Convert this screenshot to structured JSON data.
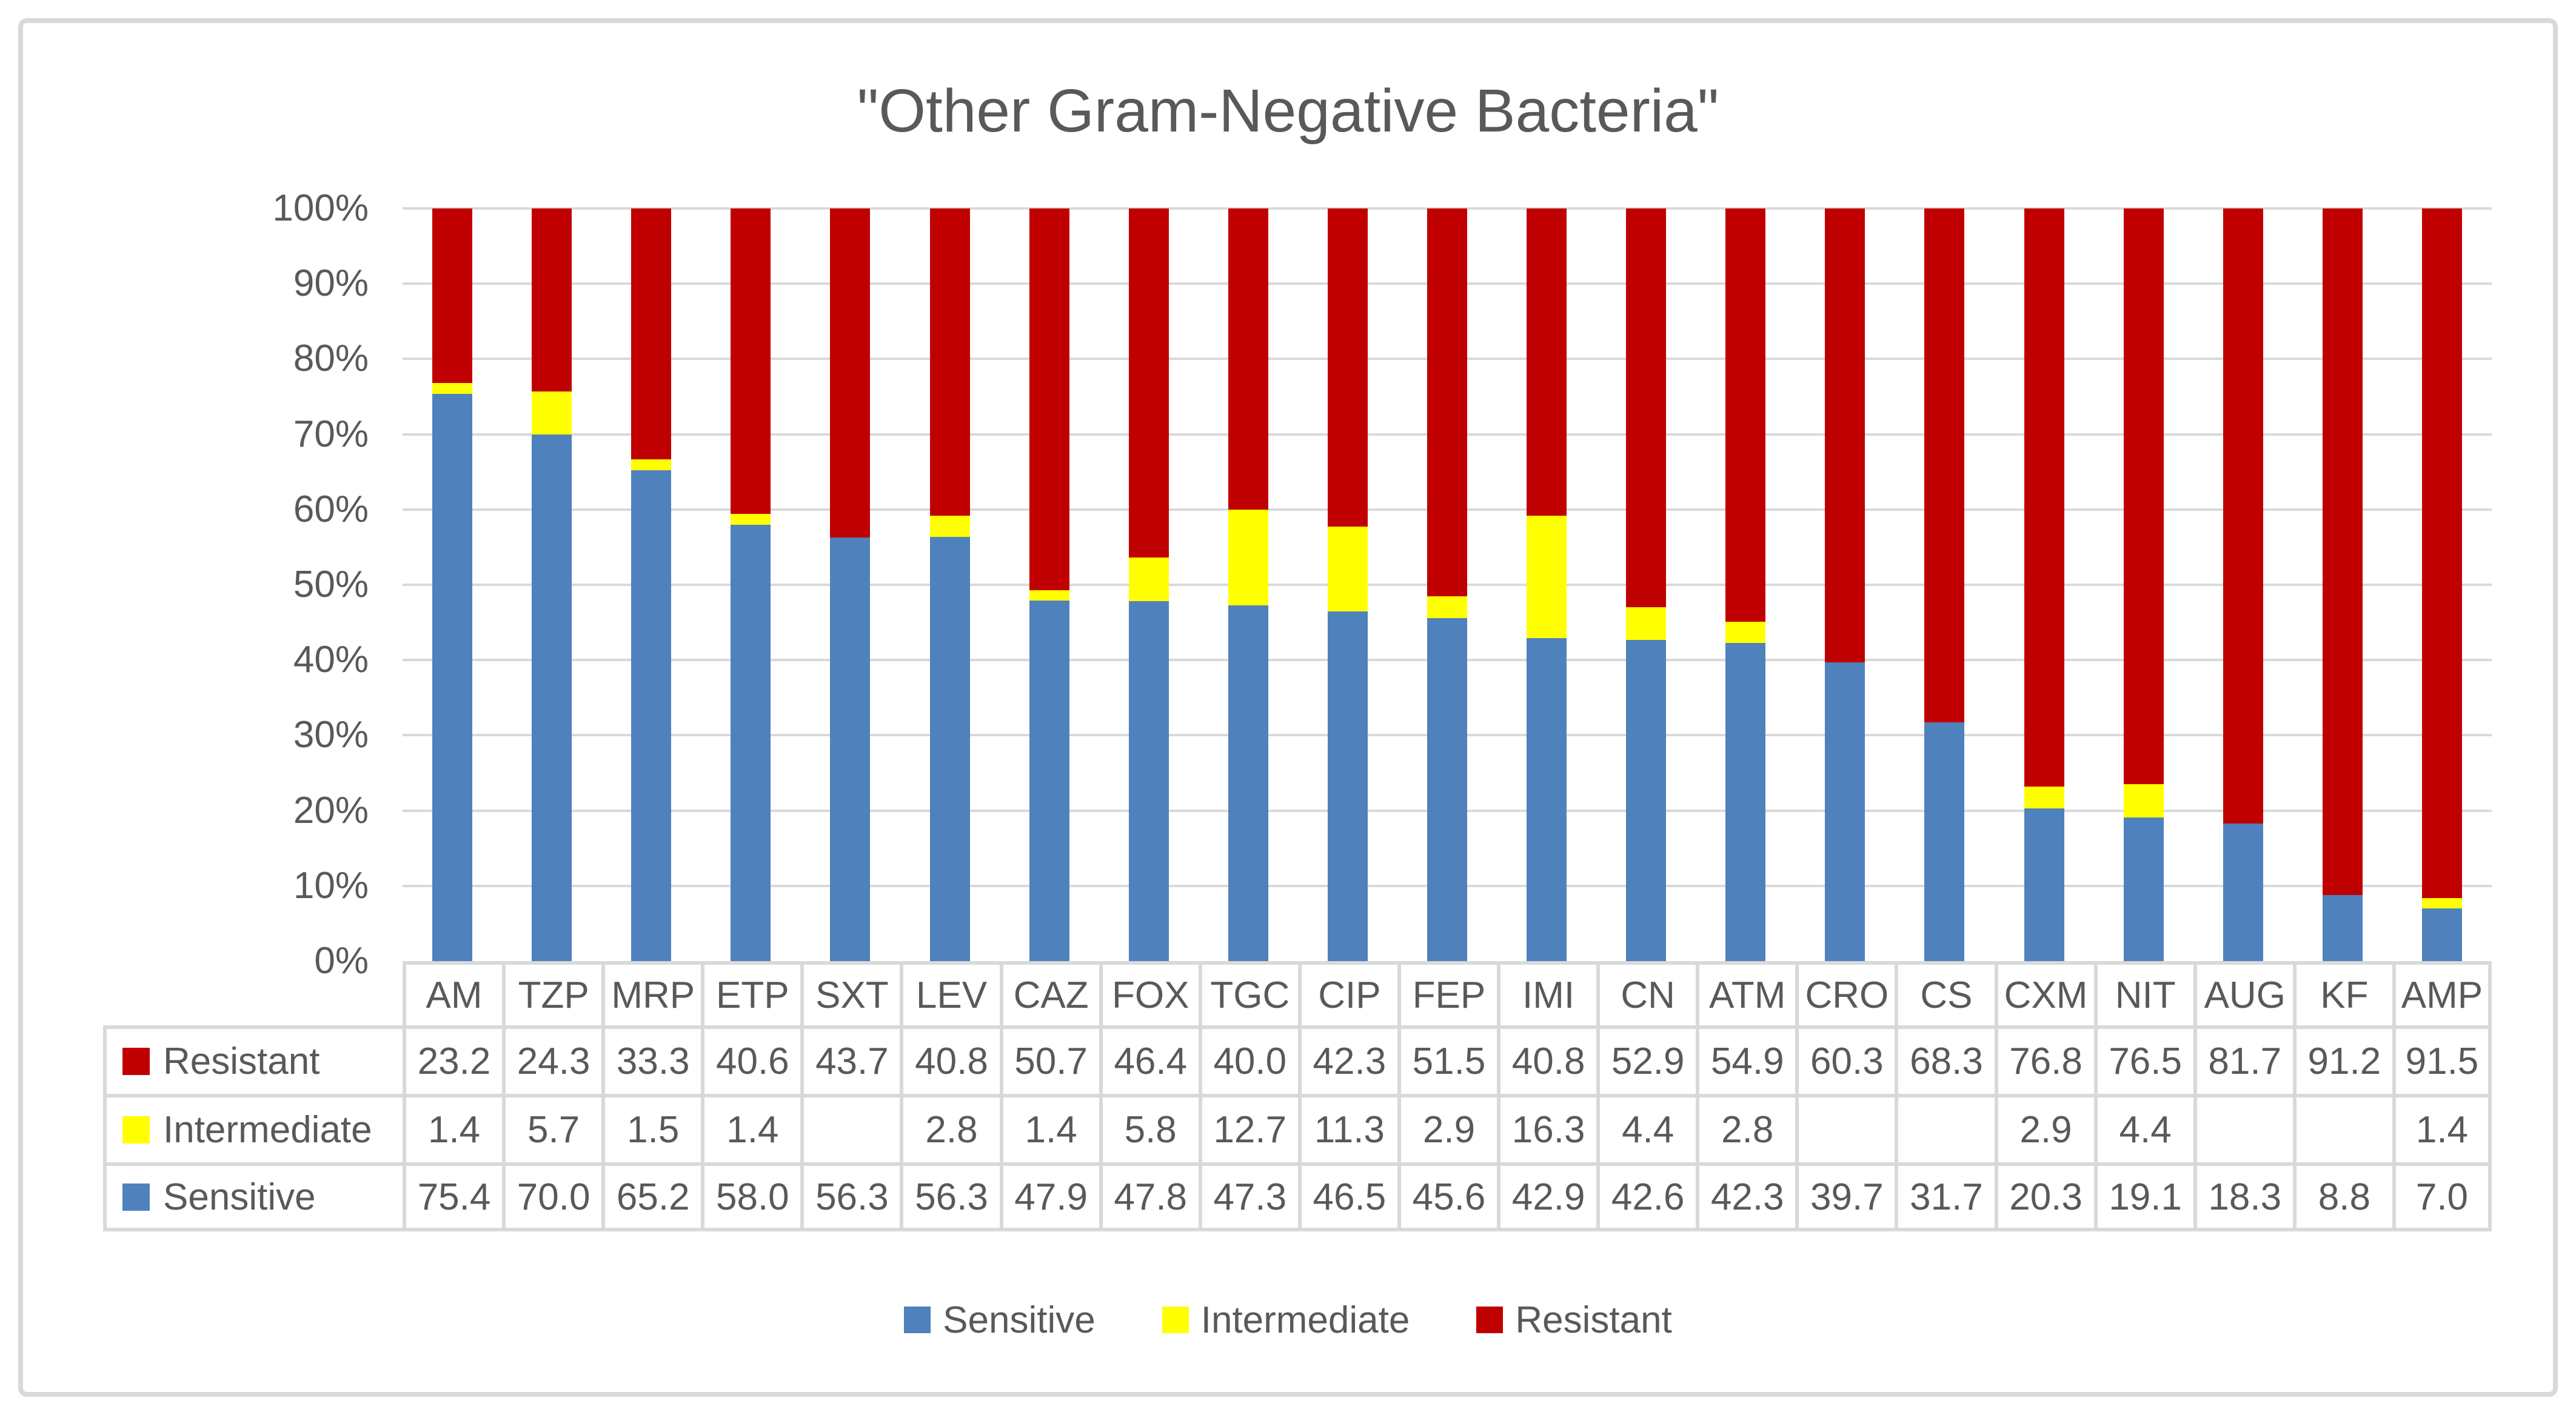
{
  "title": "\"Other Gram-Negative Bacteria\"",
  "colors": {
    "sensitive": "#4F81BD",
    "intermediate": "#FFFF00",
    "resistant": "#C00000",
    "grid": "#D9D9D9",
    "text": "#595959"
  },
  "chart_data": {
    "type": "bar",
    "stacked": "percent",
    "title": "\"Other Gram-Negative Bacteria\"",
    "categories": [
      "AM",
      "TZP",
      "MRP",
      "ETP",
      "SXT",
      "LEV",
      "CAZ",
      "FOX",
      "TGC",
      "CIP",
      "FEP",
      "IMI",
      "CN",
      "ATM",
      "CRO",
      "CS",
      "CXM",
      "NIT",
      "AUG",
      "KF",
      "AMP"
    ],
    "series": [
      {
        "name": "Sensitive",
        "color": "#4F81BD",
        "values": [
          75.4,
          70.0,
          65.2,
          58.0,
          56.3,
          56.3,
          47.9,
          47.8,
          47.3,
          46.5,
          45.6,
          42.9,
          42.6,
          42.3,
          39.7,
          31.7,
          20.3,
          19.1,
          18.3,
          8.8,
          7.0
        ]
      },
      {
        "name": "Intermediate",
        "color": "#FFFF00",
        "values": [
          1.4,
          5.7,
          1.5,
          1.4,
          null,
          2.8,
          1.4,
          5.8,
          12.7,
          11.3,
          2.9,
          16.3,
          4.4,
          2.8,
          null,
          null,
          2.9,
          4.4,
          null,
          null,
          1.4
        ]
      },
      {
        "name": "Resistant",
        "color": "#C00000",
        "values": [
          23.2,
          24.3,
          33.3,
          40.6,
          43.7,
          40.8,
          50.7,
          46.4,
          40.0,
          42.3,
          51.5,
          40.8,
          52.9,
          54.9,
          60.3,
          68.3,
          76.8,
          76.5,
          81.7,
          91.2,
          91.5
        ]
      }
    ],
    "ylim": [
      0,
      100
    ],
    "y_ticks": [
      "100%",
      "90%",
      "80%",
      "70%",
      "60%",
      "50%",
      "40%",
      "30%",
      "20%",
      "10%",
      "0%"
    ],
    "grid": "horizontal",
    "legend": [
      "Sensitive",
      "Intermediate",
      "Resistant"
    ],
    "legend_position": "bottom"
  },
  "table": {
    "rows": [
      {
        "label": "Resistant",
        "key": "resistant",
        "values": [
          "23.2",
          "24.3",
          "33.3",
          "40.6",
          "43.7",
          "40.8",
          "50.7",
          "46.4",
          "40.0",
          "42.3",
          "51.5",
          "40.8",
          "52.9",
          "54.9",
          "60.3",
          "68.3",
          "76.8",
          "76.5",
          "81.7",
          "91.2",
          "91.5"
        ]
      },
      {
        "label": "Intermediate",
        "key": "intermediate",
        "values": [
          "1.4",
          "5.7",
          "1.5",
          "1.4",
          "",
          "2.8",
          "1.4",
          "5.8",
          "12.7",
          "11.3",
          "2.9",
          "16.3",
          "4.4",
          "2.8",
          "",
          "",
          "2.9",
          "4.4",
          "",
          "",
          "1.4"
        ]
      },
      {
        "label": "Sensitive",
        "key": "sensitive",
        "values": [
          "75.4",
          "70.0",
          "65.2",
          "58.0",
          "56.3",
          "56.3",
          "47.9",
          "47.8",
          "47.3",
          "46.5",
          "45.6",
          "42.9",
          "42.6",
          "42.3",
          "39.7",
          "31.7",
          "20.3",
          "19.1",
          "18.3",
          "8.8",
          "7.0"
        ]
      }
    ]
  },
  "legend": {
    "items": [
      {
        "label": "Sensitive",
        "key": "sensitive"
      },
      {
        "label": "Intermediate",
        "key": "intermediate"
      },
      {
        "label": "Resistant",
        "key": "resistant"
      }
    ]
  }
}
